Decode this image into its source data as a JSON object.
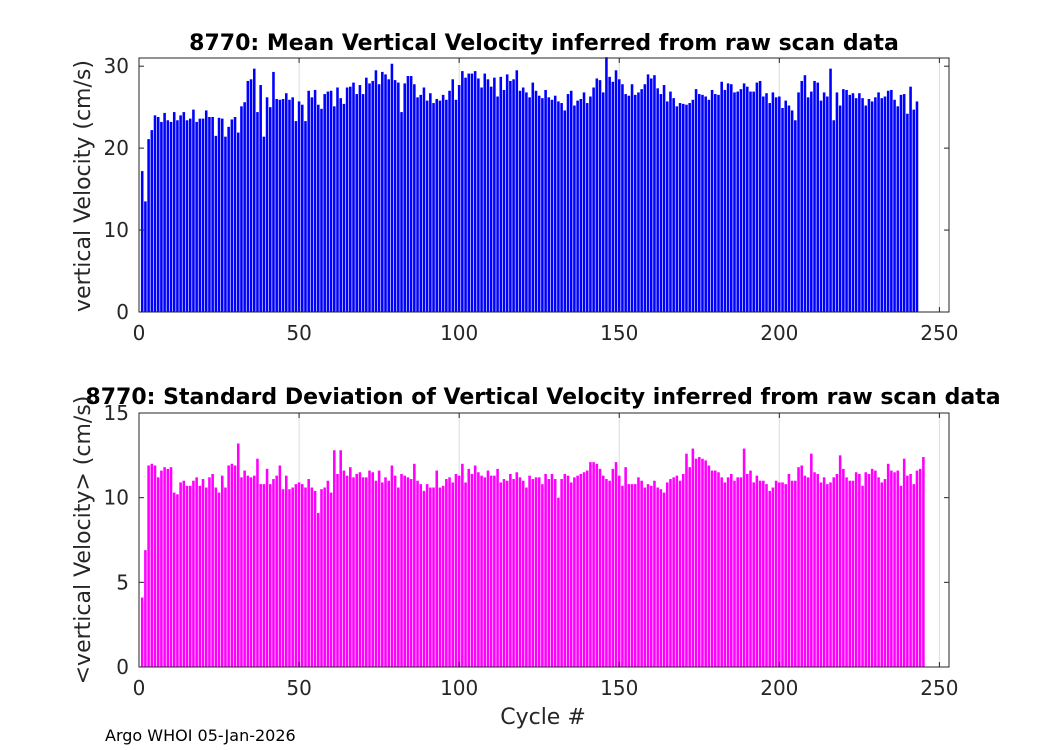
{
  "chart_data": [
    {
      "type": "bar",
      "title": "8770: Mean Vertical Velocity inferred from raw scan data",
      "xlabel": "",
      "ylabel": "vertical Velocity (cm/s)",
      "xlim": [
        0,
        253
      ],
      "ylim": [
        0,
        31
      ],
      "xticks": [
        0,
        50,
        100,
        150,
        200,
        250
      ],
      "yticks": [
        0,
        10,
        20,
        30
      ],
      "color": "#0000ff",
      "grid": "vertical",
      "x_start": 1,
      "values": [
        17.2,
        13.5,
        21.1,
        22.2,
        24.0,
        23.8,
        23.2,
        24.3,
        23.4,
        23.2,
        24.4,
        23.4,
        24.0,
        24.4,
        23.4,
        23.6,
        24.7,
        23.2,
        23.6,
        23.6,
        24.6,
        23.8,
        23.8,
        21.5,
        23.7,
        23.6,
        21.4,
        22.6,
        23.5,
        23.8,
        21.9,
        25.1,
        25.6,
        28.2,
        28.4,
        29.7,
        24.4,
        27.7,
        21.4,
        26.2,
        25.0,
        29.3,
        26.0,
        25.9,
        26.0,
        26.7,
        25.9,
        26.2,
        23.3,
        25.7,
        25.3,
        23.3,
        27.0,
        26.2,
        27.1,
        25.3,
        24.8,
        26.6,
        26.9,
        27.0,
        25.1,
        27.4,
        26.1,
        25.4,
        27.4,
        27.5,
        28.0,
        26.6,
        27.7,
        26.6,
        28.6,
        27.9,
        28.2,
        29.5,
        27.8,
        29.3,
        29.0,
        28.4,
        30.3,
        28.3,
        28.0,
        24.4,
        27.9,
        28.8,
        28.8,
        27.8,
        26.2,
        26.5,
        27.4,
        25.8,
        26.7,
        25.5,
        26.0,
        25.8,
        26.5,
        25.9,
        27.0,
        28.4,
        25.9,
        27.7,
        29.4,
        28.6,
        29.1,
        29.1,
        29.4,
        28.5,
        27.4,
        29.1,
        28.4,
        27.5,
        28.6,
        26.3,
        28.7,
        27.1,
        29.0,
        28.2,
        28.4,
        29.5,
        27.0,
        27.4,
        26.8,
        26.2,
        28.0,
        27.0,
        26.4,
        26.1,
        27.1,
        26.2,
        25.9,
        26.4,
        25.7,
        25.5,
        24.6,
        26.6,
        27.0,
        25.2,
        25.8,
        26.0,
        26.8,
        25.5,
        26.3,
        27.4,
        28.5,
        28.3,
        26.8,
        31.1,
        28.7,
        28.1,
        29.5,
        28.4,
        27.8,
        26.6,
        26.4,
        27.8,
        26.5,
        26.8,
        27.2,
        27.8,
        29.0,
        28.5,
        28.9,
        27.3,
        26.6,
        27.7,
        25.7,
        26.9,
        26.1,
        25.1,
        25.5,
        25.4,
        25.3,
        25.5,
        25.9,
        27.2,
        26.6,
        26.5,
        26.3,
        25.9,
        27.1,
        26.6,
        26.5,
        28.1,
        27.1,
        27.9,
        27.8,
        26.8,
        26.9,
        27.2,
        27.9,
        27.5,
        26.9,
        26.9,
        28.0,
        28.2,
        26.3,
        26.7,
        25.5,
        26.8,
        26.2,
        26.3,
        24.9,
        25.8,
        25.2,
        24.6,
        23.4,
        26.8,
        28.2,
        28.9,
        26.2,
        26.9,
        28.2,
        28.0,
        25.8,
        26.8,
        26.3,
        29.7,
        23.4,
        26.8,
        25.2,
        27.2,
        27.1,
        26.5,
        26.7,
        26.1,
        26.7,
        26.1,
        25.2,
        26.0,
        25.7,
        26.2,
        26.8,
        26.1,
        26.3,
        27.0,
        27.1,
        25.9,
        25.1,
        26.5,
        26.6,
        24.2,
        27.5,
        24.7,
        25.7
      ]
    },
    {
      "type": "bar",
      "title": "8770: Standard Deviation of Vertical Velocity inferred from raw scan data",
      "xlabel": "Cycle #",
      "ylabel": "<vertical Velocity> (cm/s)",
      "xlim": [
        0,
        253
      ],
      "ylim": [
        0,
        15
      ],
      "xticks": [
        0,
        50,
        100,
        150,
        200,
        250
      ],
      "yticks": [
        0,
        5,
        10,
        15
      ],
      "color": "#ff00ff",
      "grid": "vertical",
      "x_start": 1,
      "values": [
        4.1,
        6.9,
        11.9,
        12.0,
        11.9,
        11.2,
        11.6,
        11.8,
        11.7,
        11.8,
        10.3,
        10.2,
        10.9,
        11.0,
        10.7,
        10.7,
        11.0,
        11.2,
        10.7,
        11.1,
        10.6,
        11.2,
        11.4,
        10.6,
        10.3,
        11.3,
        10.6,
        11.9,
        12.0,
        11.9,
        13.2,
        11.2,
        11.6,
        11.3,
        11.2,
        11.3,
        12.3,
        10.8,
        10.8,
        11.7,
        10.8,
        11.1,
        11.3,
        11.9,
        10.5,
        11.3,
        10.5,
        10.6,
        10.8,
        10.9,
        10.8,
        10.6,
        11.1,
        10.6,
        10.4,
        9.1,
        10.5,
        10.6,
        11.0,
        10.3,
        12.8,
        11.4,
        12.8,
        11.6,
        11.3,
        11.8,
        11.2,
        11.4,
        11.5,
        11.2,
        11.2,
        11.6,
        11.5,
        11.0,
        11.6,
        10.9,
        11.2,
        11.0,
        11.9,
        11.3,
        10.6,
        11.4,
        11.3,
        11.2,
        11.1,
        12.0,
        11.0,
        10.8,
        10.4,
        10.8,
        10.6,
        10.6,
        11.6,
        10.6,
        10.7,
        11.1,
        11.2,
        10.9,
        11.4,
        11.3,
        12.0,
        10.9,
        11.7,
        11.4,
        11.9,
        11.5,
        11.3,
        11.2,
        11.6,
        11.3,
        11.3,
        11.7,
        10.9,
        11.1,
        11.0,
        11.4,
        11.1,
        11.5,
        11.2,
        11.0,
        10.6,
        11.3,
        11.1,
        11.2,
        11.2,
        10.8,
        11.4,
        11.1,
        11.4,
        11.1,
        10.0,
        11.1,
        11.4,
        11.3,
        10.9,
        11.2,
        11.3,
        11.4,
        11.5,
        11.6,
        12.1,
        12.1,
        12.0,
        11.7,
        11.3,
        11.1,
        11.0,
        11.7,
        12.1,
        11.3,
        10.7,
        11.8,
        10.8,
        10.8,
        10.8,
        11.2,
        11.0,
        10.6,
        10.8,
        10.7,
        11.0,
        10.6,
        10.5,
        10.3,
        10.9,
        11.1,
        11.2,
        11.3,
        11.0,
        11.4,
        12.6,
        11.8,
        12.9,
        12.3,
        12.4,
        12.3,
        12.2,
        11.9,
        11.6,
        11.6,
        11.5,
        11.2,
        10.9,
        11.2,
        11.4,
        11.0,
        11.2,
        11.2,
        12.9,
        11.4,
        11.6,
        10.9,
        11.3,
        11.0,
        11.0,
        10.8,
        10.4,
        10.6,
        11.0,
        10.9,
        10.9,
        10.8,
        11.4,
        11.0,
        11.0,
        11.8,
        11.9,
        11.3,
        11.2,
        12.6,
        11.5,
        11.4,
        10.9,
        11.2,
        10.8,
        10.9,
        11.2,
        11.4,
        12.5,
        11.7,
        11.2,
        11.0,
        11.0,
        11.5,
        11.4,
        10.7,
        11.5,
        11.4,
        11.7,
        11.6,
        11.2,
        10.9,
        11.1,
        12.0,
        11.6,
        11.5,
        11.6,
        10.7,
        12.3,
        11.3,
        11.4,
        10.8,
        11.6,
        11.7,
        12.4
      ]
    }
  ],
  "footer": {
    "text": "Argo WHOI 05-Jan-2026"
  }
}
